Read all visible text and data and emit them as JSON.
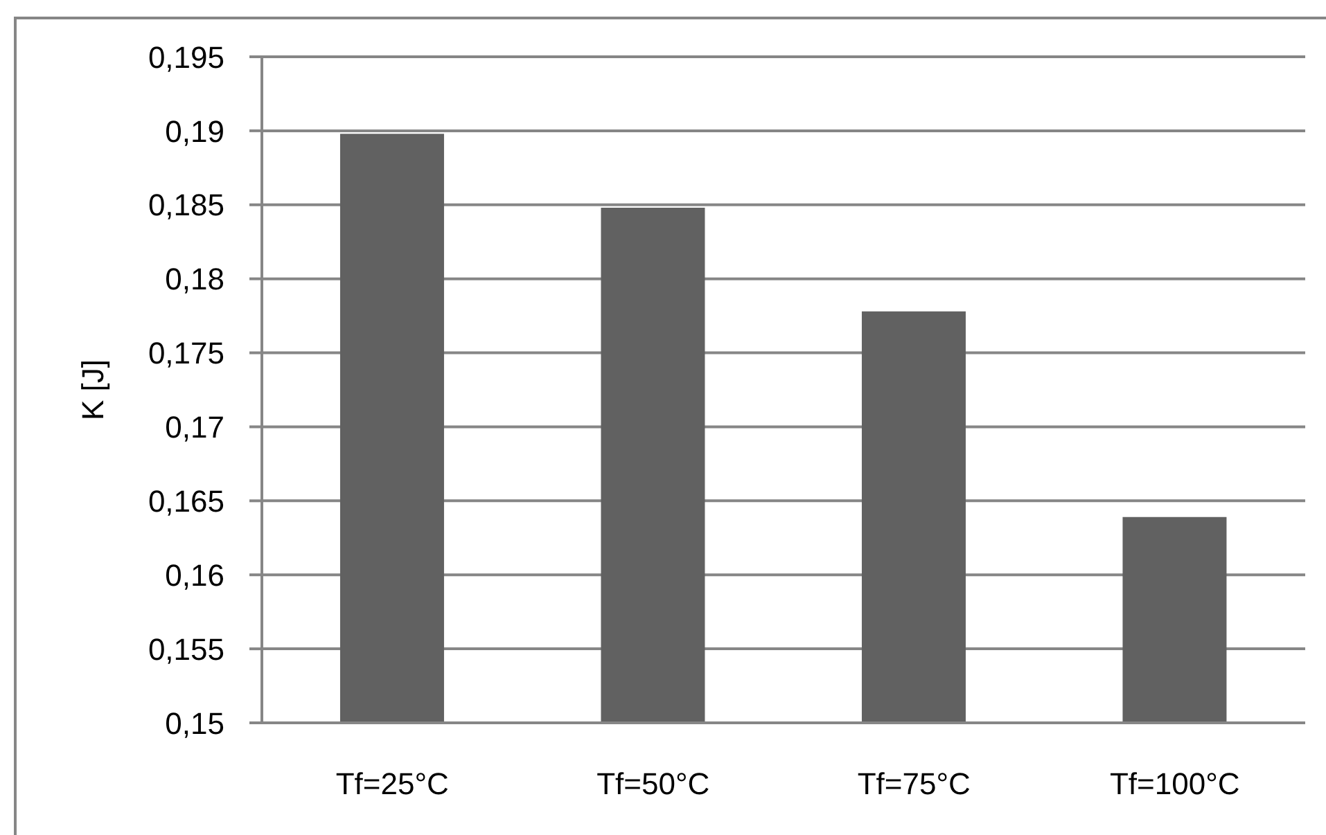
{
  "chart_data": {
    "type": "bar",
    "ylabel": "K [J]",
    "categories": [
      "Tf=25°C",
      "Tf=50°C",
      "Tf=75°C",
      "Tf=100°C"
    ],
    "values": [
      0.1898,
      0.1848,
      0.1778,
      0.1639
    ],
    "color": "#616161",
    "ylim": [
      0.15,
      0.195
    ],
    "yticks": [
      {
        "value": 0.15,
        "label": "0,15"
      },
      {
        "value": 0.155,
        "label": "0,155"
      },
      {
        "value": 0.16,
        "label": "0,16"
      },
      {
        "value": 0.165,
        "label": "0,165"
      },
      {
        "value": 0.17,
        "label": "0,17"
      },
      {
        "value": 0.175,
        "label": "0,175"
      },
      {
        "value": 0.18,
        "label": "0,18"
      },
      {
        "value": 0.185,
        "label": "0,185"
      },
      {
        "value": 0.19,
        "label": "0,19"
      },
      {
        "value": 0.195,
        "label": "0,195"
      }
    ],
    "grid": "y"
  }
}
